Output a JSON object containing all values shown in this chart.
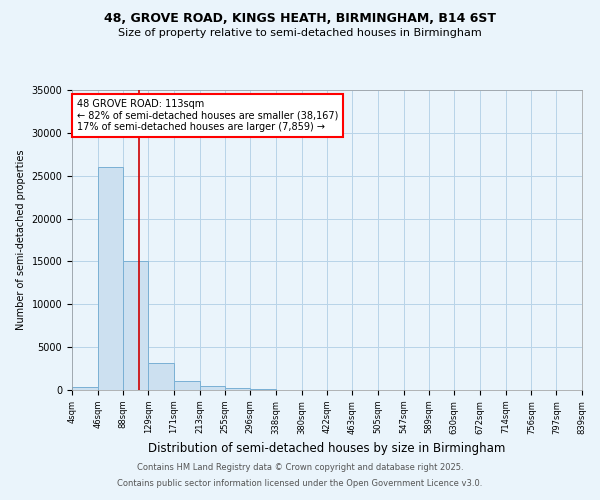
{
  "title1": "48, GROVE ROAD, KINGS HEATH, BIRMINGHAM, B14 6ST",
  "title2": "Size of property relative to semi-detached houses in Birmingham",
  "xlabel": "Distribution of semi-detached houses by size in Birmingham",
  "ylabel": "Number of semi-detached properties",
  "footnote1": "Contains HM Land Registry data © Crown copyright and database right 2025.",
  "footnote2": "Contains public sector information licensed under the Open Government Licence v3.0.",
  "annotation_line1": "48 GROVE ROAD: 113sqm",
  "annotation_line2": "← 82% of semi-detached houses are smaller (38,167)",
  "annotation_line3": "17% of semi-detached houses are larger (7,859) →",
  "bins": [
    4,
    46,
    88,
    129,
    171,
    213,
    255,
    296,
    338,
    380,
    422,
    463,
    505,
    547,
    589,
    630,
    672,
    714,
    756,
    797,
    839
  ],
  "values": [
    400,
    26000,
    15000,
    3200,
    1100,
    450,
    200,
    60,
    0,
    0,
    0,
    0,
    0,
    0,
    0,
    0,
    0,
    0,
    0,
    0
  ],
  "bar_color": "#cce0f0",
  "bar_edge_color": "#7ab0d4",
  "vline_color": "#cc0000",
  "vline_x": 113,
  "background_color": "#eaf4fb",
  "grid_color": "#b8d4e8",
  "ylim": [
    0,
    35000
  ],
  "yticks": [
    0,
    5000,
    10000,
    15000,
    20000,
    25000,
    30000,
    35000
  ]
}
